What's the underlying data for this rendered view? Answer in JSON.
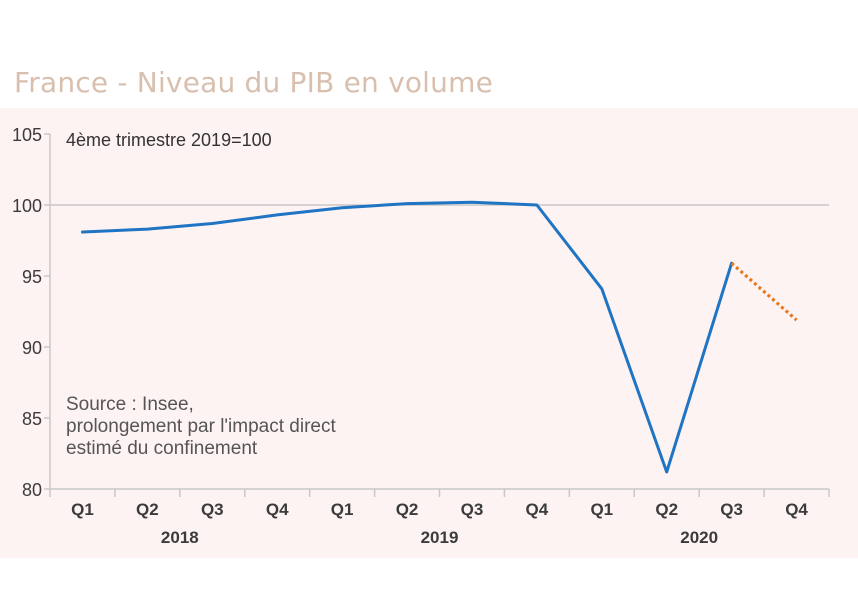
{
  "title": "France - Niveau du PIB en volume",
  "chart_data": {
    "type": "line",
    "subtitle": "4ème trimestre 2019=100",
    "annotation_lines": [
      "Source : Insee,",
      "prolongement par l'impact direct",
      "estimé du confinement"
    ],
    "categories": [
      "Q1",
      "Q2",
      "Q3",
      "Q4",
      "Q1",
      "Q2",
      "Q3",
      "Q4",
      "Q1",
      "Q2",
      "Q3",
      "Q4"
    ],
    "year_labels": [
      {
        "label": "2018",
        "span": [
          0,
          3
        ]
      },
      {
        "label": "2019",
        "span": [
          4,
          7
        ]
      },
      {
        "label": "2020",
        "span": [
          8,
          11
        ]
      }
    ],
    "ylim": [
      80,
      105
    ],
    "yticks": [
      80,
      85,
      90,
      95,
      100,
      105
    ],
    "grid": "horizontal line at 100",
    "series": [
      {
        "values": [
          98.1,
          98.3,
          98.7,
          99.3,
          99.8,
          100.1,
          100.2,
          100.0,
          94.1,
          81.2,
          95.9,
          null
        ],
        "color": "#1f74c4",
        "style": "solid"
      },
      {
        "values": [
          null,
          null,
          null,
          null,
          null,
          null,
          null,
          null,
          null,
          null,
          95.9,
          91.9
        ],
        "color": "#e8781e",
        "style": "dotted"
      }
    ],
    "colors": {
      "plot_background": "#fdf3f3",
      "axis": "#c8c8c8",
      "tick_label": "#3b3b3b",
      "annotation": "#555555"
    }
  }
}
